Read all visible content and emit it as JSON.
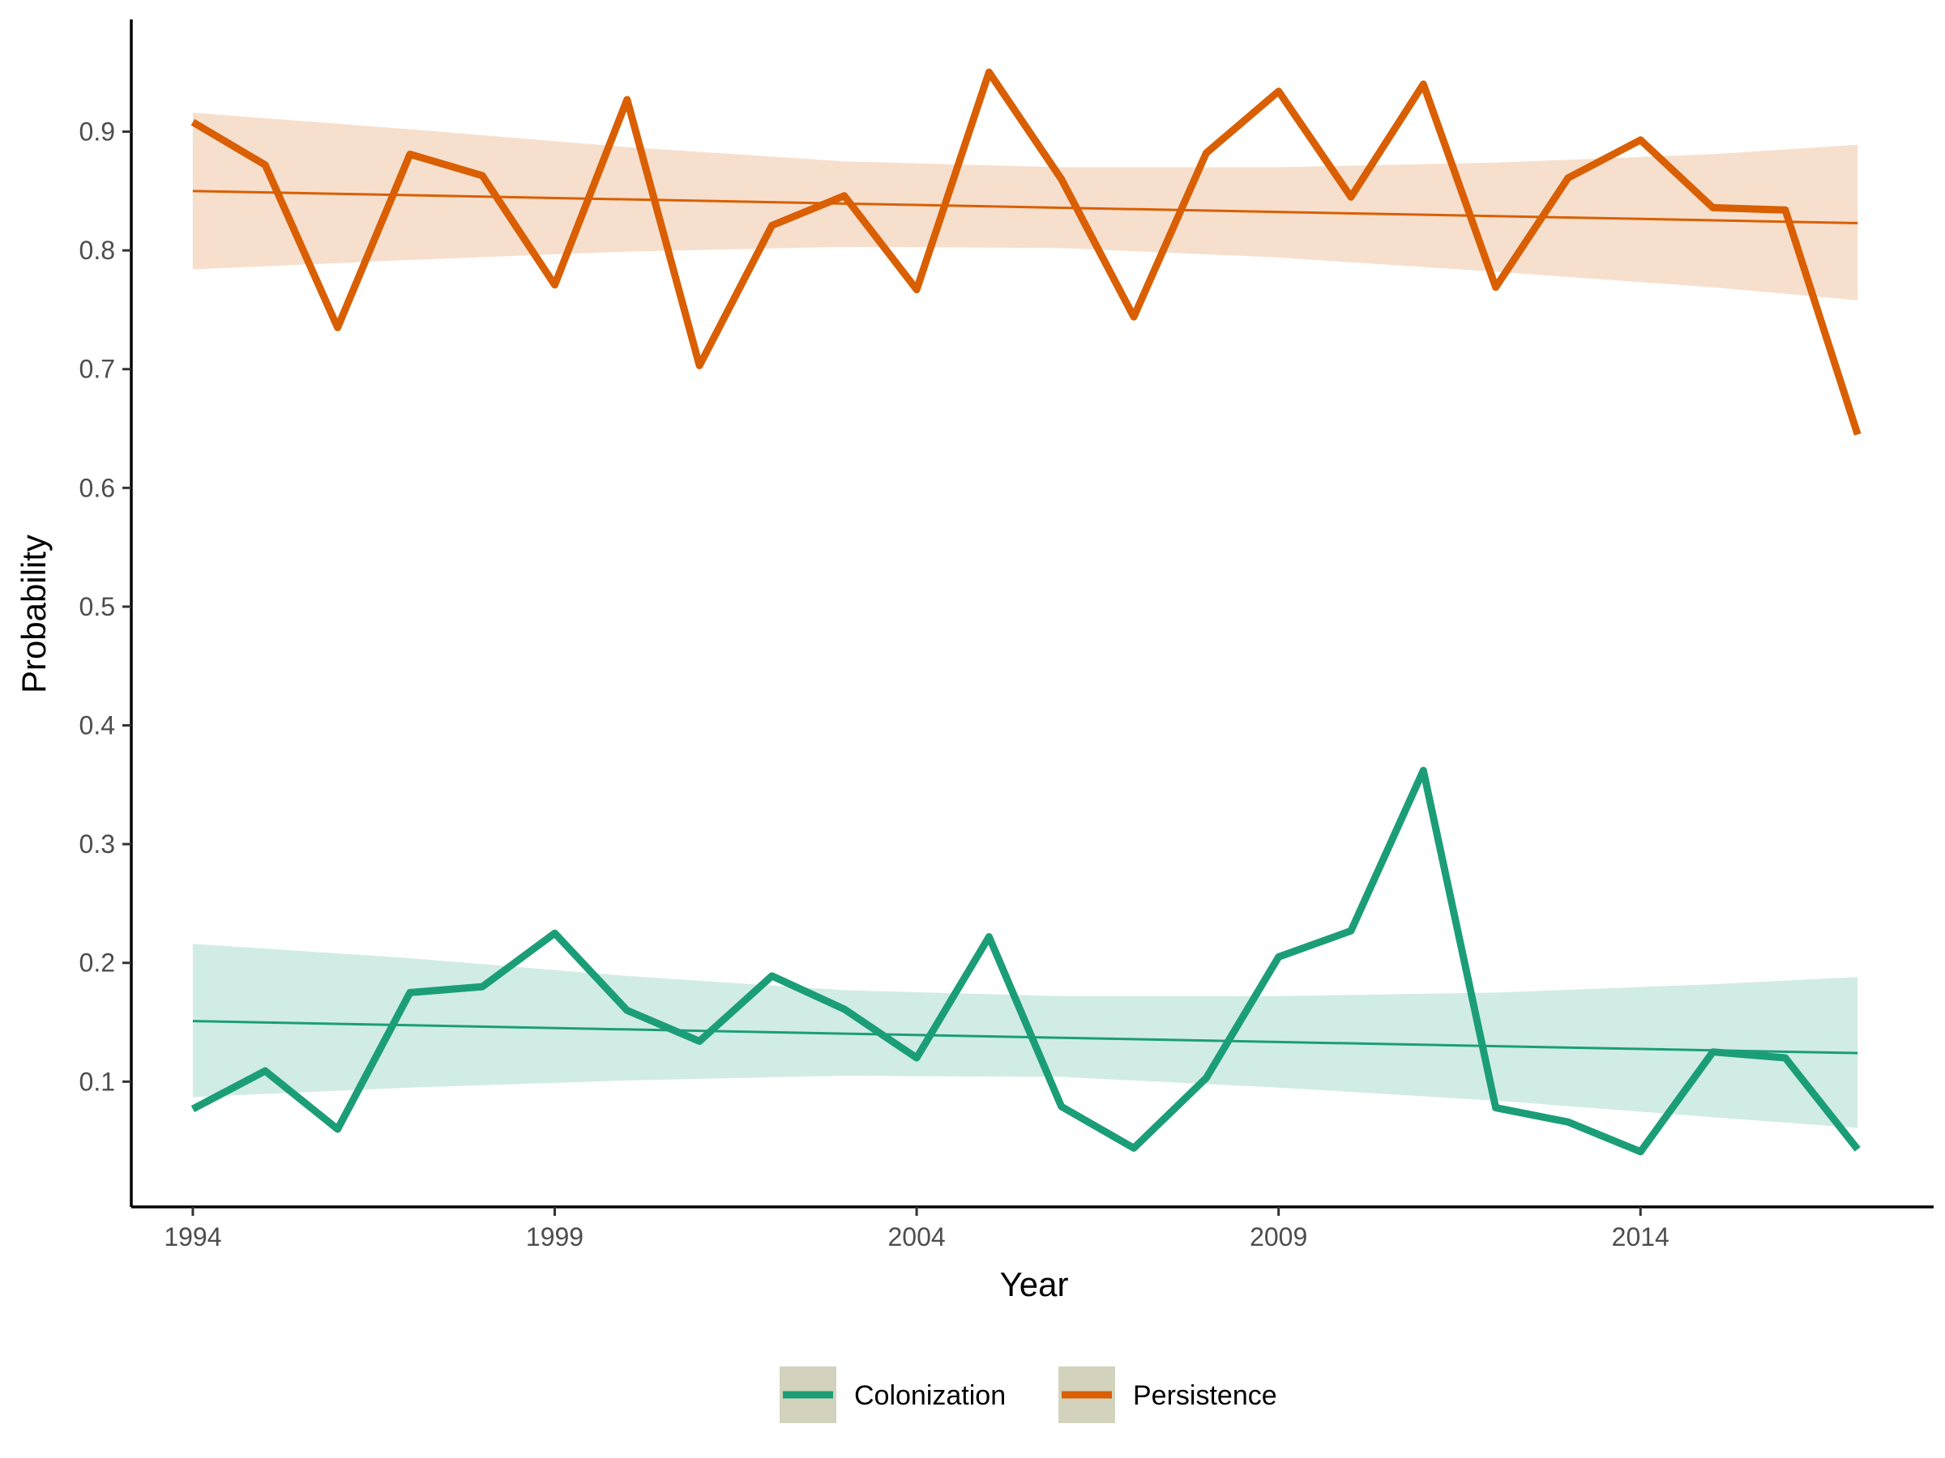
{
  "chart_data": {
    "type": "line",
    "xlabel": "Year",
    "ylabel": "Probability",
    "xlim": [
      1993.15,
      2018.05
    ],
    "ylim": [
      -0.0055,
      0.9945
    ],
    "xticks": [
      1994,
      1999,
      2004,
      2009,
      2014
    ],
    "yticks": [
      0.1,
      0.2,
      0.3,
      0.4,
      0.5,
      0.6,
      0.7,
      0.8,
      0.9
    ],
    "ytick_labels": [
      "0.1",
      "0.2",
      "0.3",
      "0.4",
      "0.5",
      "0.6",
      "0.7",
      "0.8",
      "0.9"
    ],
    "grid": false,
    "legend_position": "bottom",
    "x": [
      1994,
      1995,
      1996,
      1997,
      1998,
      1999,
      2000,
      2001,
      2002,
      2003,
      2004,
      2005,
      2006,
      2007,
      2008,
      2009,
      2010,
      2011,
      2012,
      2013,
      2014,
      2015,
      2016,
      2017
    ],
    "series": [
      {
        "name": "Colonization",
        "color": "#1b9e77",
        "band_color": "#d1ece4",
        "values": [
          0.077,
          0.109,
          0.06,
          0.175,
          0.18,
          0.225,
          0.16,
          0.134,
          0.189,
          0.161,
          0.12,
          0.222,
          0.079,
          0.044,
          0.103,
          0.205,
          0.227,
          0.362,
          0.078,
          0.066,
          0.041,
          0.125,
          0.12,
          0.043
        ],
        "trend": [
          0.151,
          0.124
        ],
        "band_x": [
          1994,
          1997,
          2000,
          2003,
          2006,
          2009,
          2012,
          2015,
          2017
        ],
        "band_upper": [
          0.216,
          0.204,
          0.189,
          0.177,
          0.172,
          0.172,
          0.175,
          0.182,
          0.188
        ],
        "band_lower": [
          0.087,
          0.095,
          0.101,
          0.105,
          0.104,
          0.095,
          0.084,
          0.07,
          0.061
        ]
      },
      {
        "name": "Persistence",
        "color": "#d95f02",
        "band_color": "#f7dfcd",
        "values": [
          0.908,
          0.872,
          0.735,
          0.881,
          0.863,
          0.771,
          0.927,
          0.703,
          0.821,
          0.846,
          0.767,
          0.95,
          0.86,
          0.744,
          0.882,
          0.934,
          0.845,
          0.94,
          0.769,
          0.861,
          0.893,
          0.836,
          0.834,
          0.645
        ],
        "trend": [
          0.85,
          0.823
        ],
        "band_x": [
          1994,
          1997,
          2000,
          2003,
          2006,
          2009,
          2012,
          2015,
          2017
        ],
        "band_upper": [
          0.916,
          0.902,
          0.887,
          0.875,
          0.87,
          0.87,
          0.874,
          0.881,
          0.889
        ],
        "band_lower": [
          0.784,
          0.792,
          0.799,
          0.803,
          0.802,
          0.794,
          0.782,
          0.769,
          0.758
        ]
      }
    ]
  }
}
